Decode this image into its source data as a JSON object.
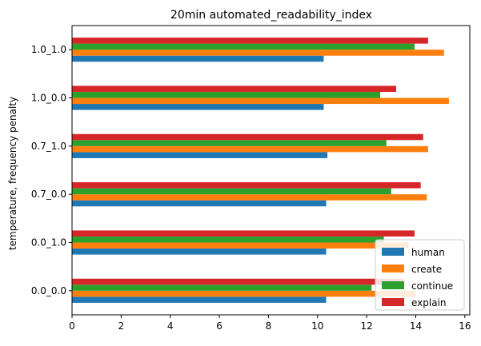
{
  "chart_data": {
    "type": "bar",
    "orientation": "horizontal",
    "title": "20min automated_readability_index",
    "xlabel": "",
    "ylabel": "temperature, frequency penalty",
    "categories": [
      "0.0_0.0",
      "0.0_1.0",
      "0.7_0.0",
      "0.7_1.0",
      "1.0_0.0",
      "1.0_1.0"
    ],
    "xlim": [
      0,
      16.2
    ],
    "xticks": [
      0,
      2,
      4,
      6,
      8,
      10,
      12,
      14,
      16
    ],
    "series": [
      {
        "name": "human",
        "color": "#1f77b4",
        "values": [
          10.35,
          10.35,
          10.35,
          10.4,
          10.25,
          10.25
        ]
      },
      {
        "name": "create",
        "color": "#ff7f0e",
        "values": [
          14.0,
          13.7,
          14.45,
          14.5,
          15.35,
          15.15
        ]
      },
      {
        "name": "continue",
        "color": "#2ca02c",
        "values": [
          12.2,
          12.7,
          13.0,
          12.8,
          12.55,
          13.95
        ]
      },
      {
        "name": "explain",
        "color": "#d62728",
        "values": [
          13.5,
          13.95,
          14.2,
          14.3,
          13.2,
          14.5
        ]
      }
    ],
    "grid": false,
    "legend_position": "lower-right"
  }
}
